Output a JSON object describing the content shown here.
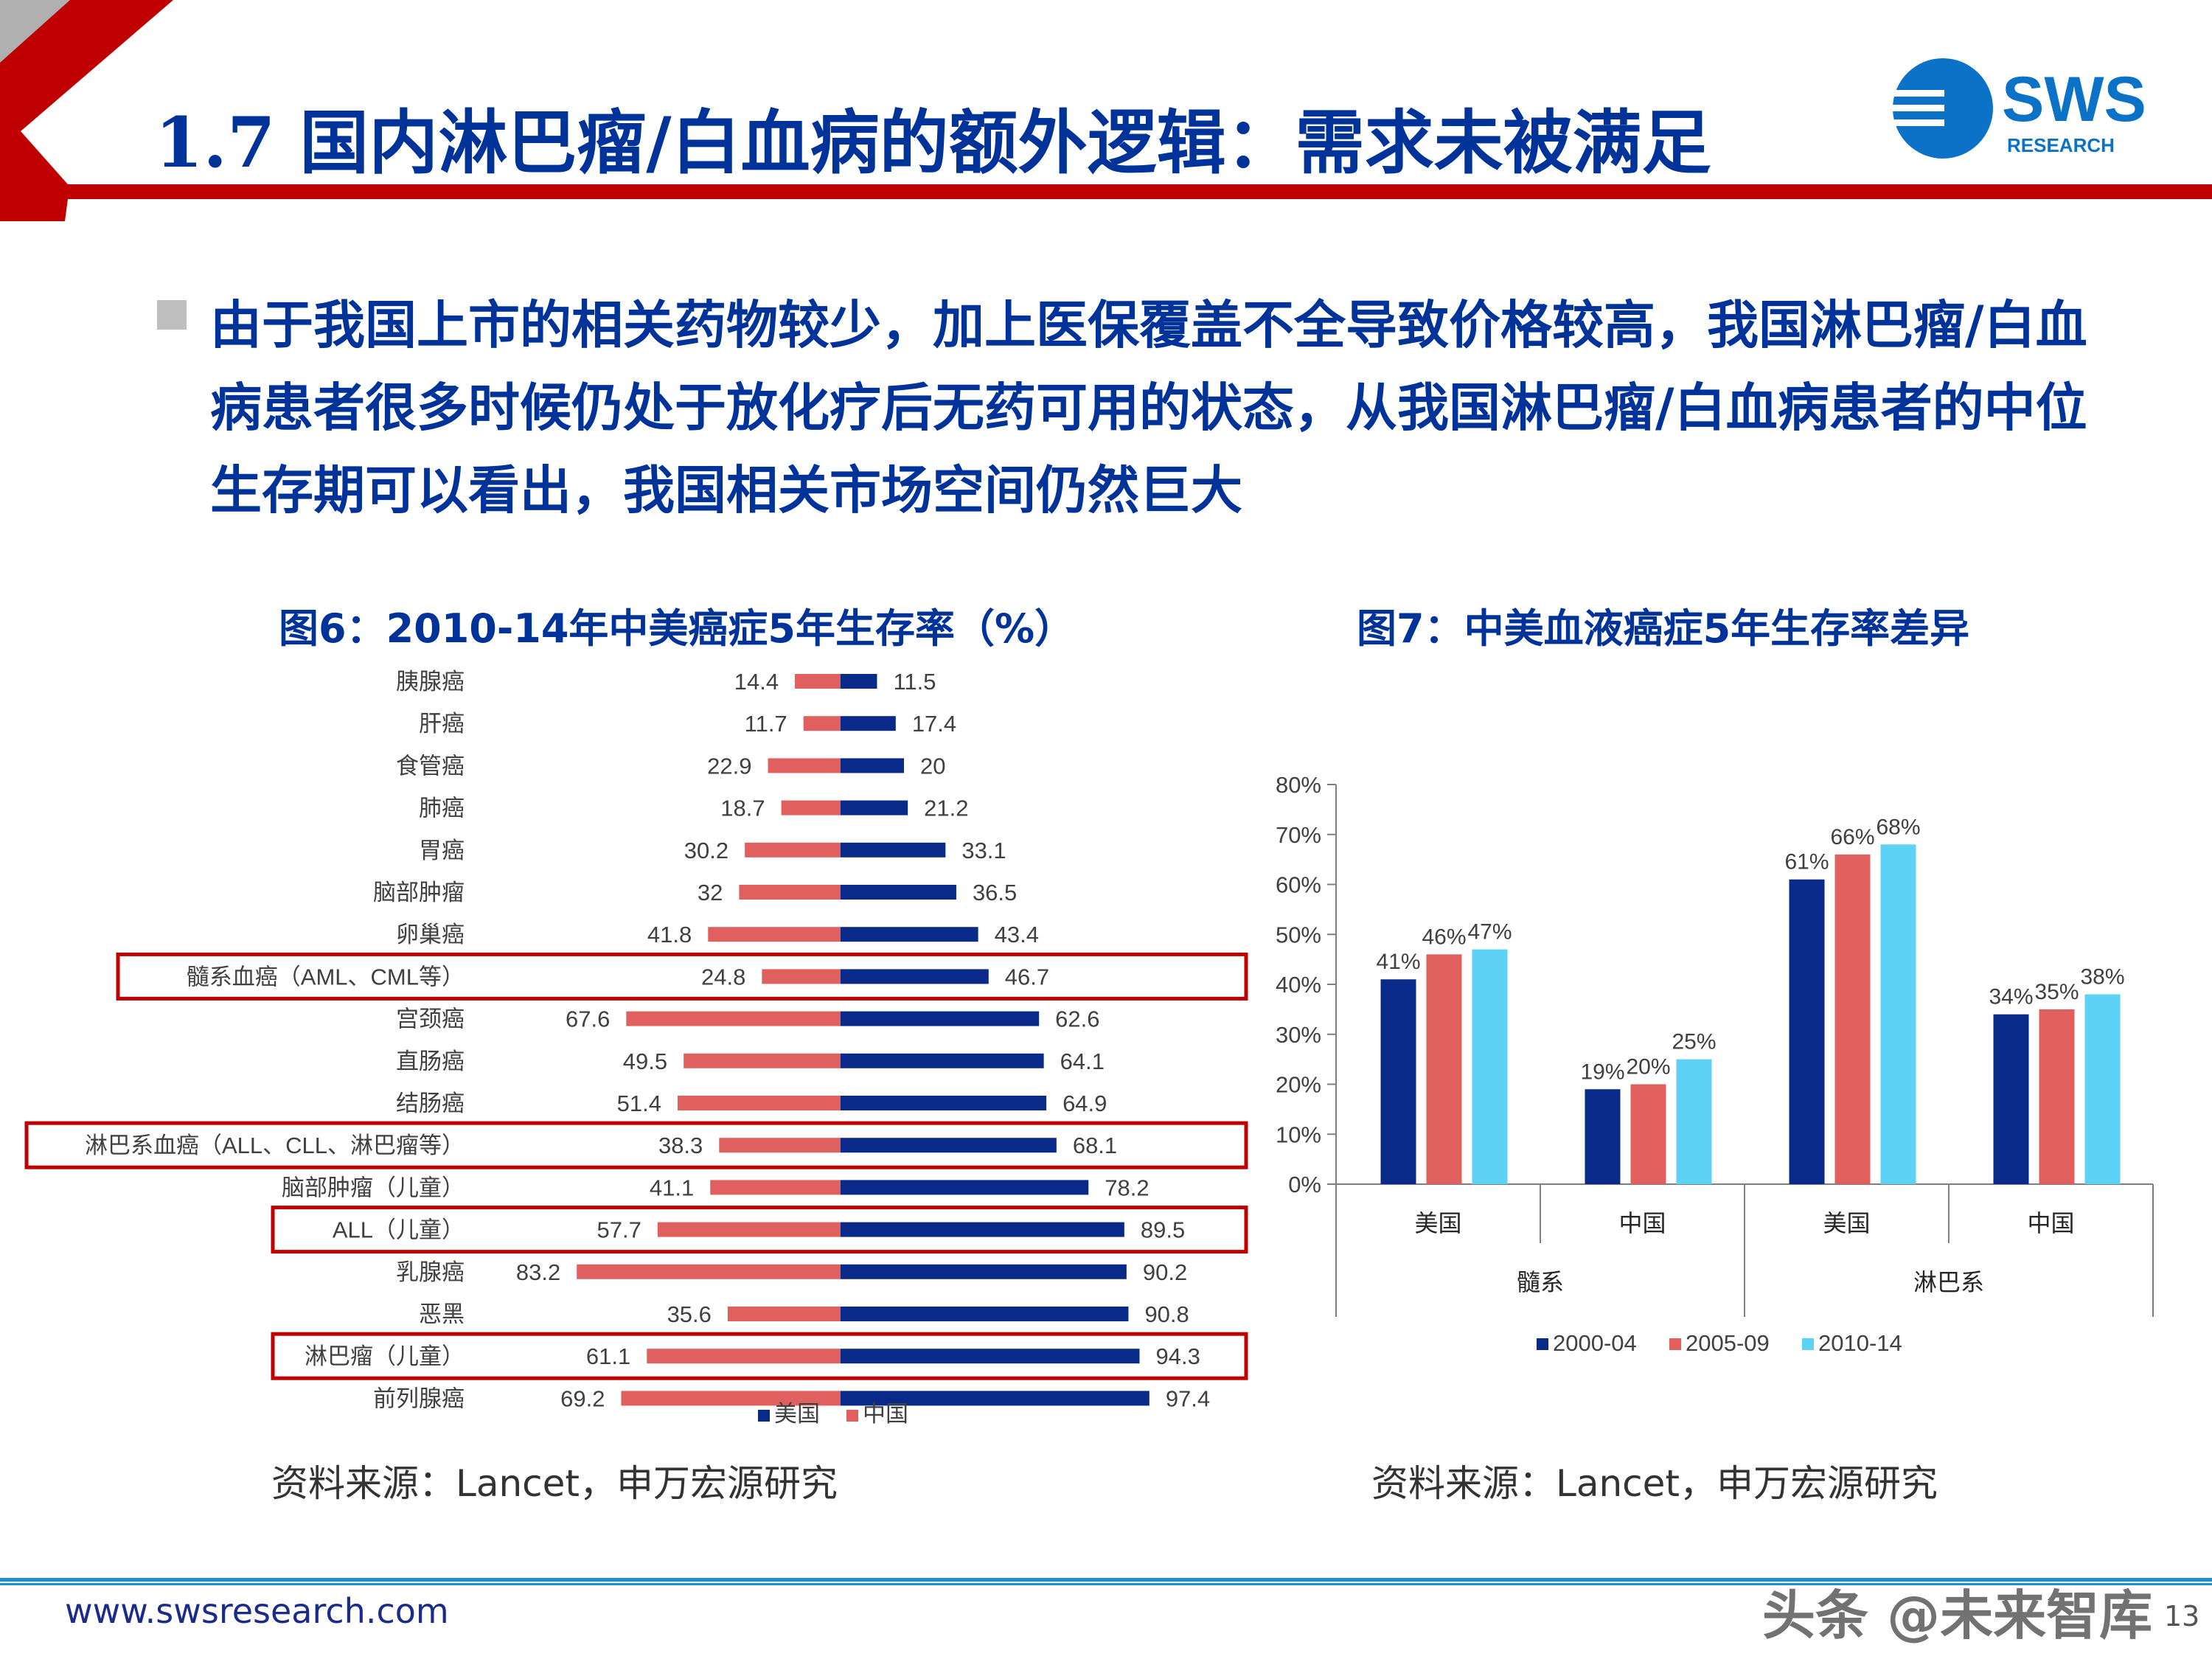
{
  "slide": {
    "title": "1.7 国内淋巴瘤/白血病的额外逻辑：需求未被满足",
    "bullet": "由于我国上市的相关药物较少，加上医保覆盖不全导致价格较高，我国淋巴瘤/白血病患者很多时候仍处于放化疗后无药可用的状态，从我国淋巴瘤/白血病患者的中位生存期可以看出，我国相关市场空间仍然巨大",
    "source_left": "资料来源：Lancet，申万宏源研究",
    "source_right": "资料来源：Lancet，申万宏源研究",
    "footer_url": "www.swsresearch.com",
    "page_number": "13",
    "watermark": "头条 @未来智库"
  },
  "logo": {
    "name": "SWS",
    "sub": "RESEARCH"
  },
  "colors": {
    "brand_blue": "#003399",
    "brand_red": "#c00000",
    "us_bar": "#0a2a8a",
    "cn_bar": "#e06060",
    "series_2000": "#0a2a8a",
    "series_2005": "#e06060",
    "series_2010": "#5ed2f5"
  },
  "chart_data": [
    {
      "type": "bar",
      "orientation": "horizontal-butterfly",
      "title": "图6：2010-14年中美癌症5年生存率（%）",
      "categories": [
        "胰腺癌",
        "肝癌",
        "食管癌",
        "肺癌",
        "胃癌",
        "脑部肿瘤",
        "卵巢癌",
        "髓系血癌（AML、CML等）",
        "宫颈癌",
        "直肠癌",
        "结肠癌",
        "淋巴系血癌（ALL、CLL、淋巴瘤等）",
        "脑部肿瘤（儿童）",
        "ALL（儿童）",
        "乳腺癌",
        "恶黑",
        "淋巴瘤（儿童）",
        "前列腺癌"
      ],
      "highlighted": [
        "髓系血癌（AML、CML等）",
        "淋巴系血癌（ALL、CLL、淋巴瘤等）",
        "ALL（儿童）",
        "淋巴瘤（儿童）"
      ],
      "series": [
        {
          "name": "美国",
          "values": [
            11.5,
            17.4,
            20,
            21.2,
            33.1,
            36.5,
            43.4,
            46.7,
            62.6,
            64.1,
            64.9,
            68.1,
            78.2,
            89.5,
            90.2,
            90.8,
            94.3,
            97.4
          ]
        },
        {
          "name": "中国",
          "values": [
            14.4,
            11.7,
            22.9,
            18.7,
            30.2,
            32,
            41.8,
            24.8,
            67.6,
            49.5,
            51.4,
            38.3,
            41.1,
            57.7,
            83.2,
            35.6,
            61.1,
            69.2
          ]
        }
      ],
      "legend": [
        "美国",
        "中国"
      ],
      "legend_position": "bottom"
    },
    {
      "type": "bar",
      "title": "图7：中美血液癌症5年生存率差异",
      "categories": [
        "美国",
        "中国",
        "美国",
        "中国"
      ],
      "groups": [
        {
          "label": "髓系",
          "categories": [
            "美国",
            "中国"
          ]
        },
        {
          "label": "淋巴系",
          "categories": [
            "美国",
            "中国"
          ]
        }
      ],
      "series": [
        {
          "name": "2000-04",
          "values": [
            41,
            19,
            61,
            34
          ]
        },
        {
          "name": "2005-09",
          "values": [
            46,
            20,
            66,
            35
          ]
        },
        {
          "name": "2010-14",
          "values": [
            47,
            25,
            68,
            38
          ]
        }
      ],
      "value_suffix": "%",
      "ylim": [
        0,
        80
      ],
      "yticks": [
        "0%",
        "10%",
        "20%",
        "30%",
        "40%",
        "50%",
        "60%",
        "70%",
        "80%"
      ],
      "legend": [
        "2000-04",
        "2005-09",
        "2010-14"
      ],
      "legend_position": "bottom"
    }
  ]
}
